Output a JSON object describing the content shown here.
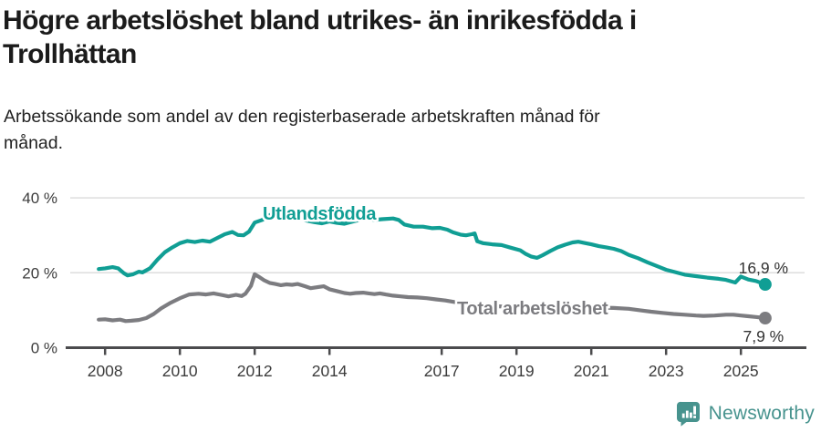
{
  "header": {
    "title": "Högre arbetslöshet bland utrikes- än inrikesfödda i\nTrollhättan",
    "subtitle": "Arbetssökande som andel av den registerbaserade arbetskraften månad för\nmånad."
  },
  "footer": {
    "brand": "Newsworthy",
    "brand_color": "#47938e"
  },
  "colors": {
    "title_text": "#1b1b1b",
    "subtitle_text": "#222222",
    "grid": "#dedede",
    "axis": "#4b4b4d",
    "tick_label": "#3c3c3c",
    "annotation_text": "#333333",
    "series_utlandsfodda": "#109e94",
    "series_total": "#7c7c80",
    "background": "#ffffff"
  },
  "chart_data": {
    "type": "line",
    "title": "Högre arbetslöshet bland utrikes- än inrikesfödda i Trollhättan",
    "subtitle": "Arbetssökande som andel av den registerbaserade arbetskraften månad för månad.",
    "x_unit": "decimal year (monthly observations)",
    "xlim": [
      2007.8,
      2025.95
    ],
    "ylim": [
      0,
      43
    ],
    "grid": "horizontal",
    "legend_position": "inline-labels",
    "x_ticks": [
      2008,
      2010,
      2012,
      2014,
      2017,
      2019,
      2021,
      2023,
      2025
    ],
    "y_ticks": [
      {
        "value": 0,
        "label": "0 %"
      },
      {
        "value": 20,
        "label": "20 %"
      },
      {
        "value": 40,
        "label": "40 %"
      }
    ],
    "series": [
      {
        "name": "Utlandsfödda",
        "color": "#109e94",
        "end_label": "16,9 %",
        "last_value": 16.9,
        "points": [
          [
            2007.83,
            21.0
          ],
          [
            2008.0,
            21.2
          ],
          [
            2008.2,
            21.5
          ],
          [
            2008.35,
            21.2
          ],
          [
            2008.5,
            19.9
          ],
          [
            2008.6,
            19.3
          ],
          [
            2008.75,
            19.6
          ],
          [
            2008.9,
            20.3
          ],
          [
            2009.0,
            20.1
          ],
          [
            2009.2,
            21.2
          ],
          [
            2009.4,
            23.5
          ],
          [
            2009.6,
            25.5
          ],
          [
            2009.8,
            26.8
          ],
          [
            2010.0,
            27.9
          ],
          [
            2010.2,
            28.5
          ],
          [
            2010.4,
            28.2
          ],
          [
            2010.6,
            28.6
          ],
          [
            2010.8,
            28.3
          ],
          [
            2011.0,
            29.3
          ],
          [
            2011.2,
            30.3
          ],
          [
            2011.4,
            30.9
          ],
          [
            2011.55,
            30.1
          ],
          [
            2011.7,
            30.0
          ],
          [
            2011.85,
            31.0
          ],
          [
            2012.0,
            33.4
          ],
          [
            2012.2,
            34.1
          ],
          [
            2012.4,
            35.4
          ],
          [
            2012.6,
            35.7
          ],
          [
            2012.8,
            35.9
          ],
          [
            2013.0,
            35.0
          ],
          [
            2013.2,
            34.4
          ],
          [
            2013.4,
            33.9
          ],
          [
            2013.6,
            33.5
          ],
          [
            2013.8,
            33.2
          ],
          [
            2014.0,
            33.7
          ],
          [
            2014.2,
            33.3
          ],
          [
            2014.4,
            33.1
          ],
          [
            2014.6,
            33.6
          ],
          [
            2014.8,
            34.1
          ],
          [
            2015.0,
            34.4
          ],
          [
            2015.2,
            34.1
          ],
          [
            2015.4,
            34.3
          ],
          [
            2015.7,
            34.5
          ],
          [
            2015.85,
            34.1
          ],
          [
            2016.0,
            32.9
          ],
          [
            2016.25,
            32.3
          ],
          [
            2016.5,
            32.3
          ],
          [
            2016.75,
            31.9
          ],
          [
            2016.95,
            32.0
          ],
          [
            2017.15,
            31.5
          ],
          [
            2017.3,
            30.8
          ],
          [
            2017.5,
            30.2
          ],
          [
            2017.65,
            30.0
          ],
          [
            2017.8,
            30.3
          ],
          [
            2017.88,
            30.5
          ],
          [
            2017.95,
            28.4
          ],
          [
            2018.1,
            27.9
          ],
          [
            2018.35,
            27.6
          ],
          [
            2018.6,
            27.4
          ],
          [
            2018.85,
            26.7
          ],
          [
            2019.1,
            26.0
          ],
          [
            2019.25,
            25.0
          ],
          [
            2019.4,
            24.3
          ],
          [
            2019.55,
            24.0
          ],
          [
            2019.7,
            24.7
          ],
          [
            2019.9,
            25.8
          ],
          [
            2020.1,
            26.8
          ],
          [
            2020.3,
            27.5
          ],
          [
            2020.5,
            28.1
          ],
          [
            2020.65,
            28.3
          ],
          [
            2020.8,
            28.0
          ],
          [
            2021.0,
            27.6
          ],
          [
            2021.2,
            27.1
          ],
          [
            2021.4,
            26.8
          ],
          [
            2021.6,
            26.4
          ],
          [
            2021.8,
            25.8
          ],
          [
            2022.0,
            24.8
          ],
          [
            2022.25,
            23.9
          ],
          [
            2022.5,
            22.8
          ],
          [
            2022.8,
            21.6
          ],
          [
            2023.0,
            20.8
          ],
          [
            2023.2,
            20.3
          ],
          [
            2023.5,
            19.5
          ],
          [
            2023.8,
            19.1
          ],
          [
            2024.1,
            18.7
          ],
          [
            2024.4,
            18.4
          ],
          [
            2024.6,
            18.1
          ],
          [
            2024.85,
            17.4
          ],
          [
            2025.0,
            19.0
          ],
          [
            2025.2,
            18.2
          ],
          [
            2025.4,
            17.8
          ],
          [
            2025.65,
            16.9
          ]
        ]
      },
      {
        "name": "Total arbetslöshet",
        "color": "#7c7c80",
        "end_label": "7,9 %",
        "last_value": 7.9,
        "points": [
          [
            2007.83,
            7.5
          ],
          [
            2008.0,
            7.6
          ],
          [
            2008.2,
            7.3
          ],
          [
            2008.4,
            7.5
          ],
          [
            2008.55,
            7.1
          ],
          [
            2008.7,
            7.2
          ],
          [
            2008.9,
            7.4
          ],
          [
            2009.1,
            7.9
          ],
          [
            2009.3,
            9.0
          ],
          [
            2009.5,
            10.5
          ],
          [
            2009.75,
            12.0
          ],
          [
            2010.0,
            13.2
          ],
          [
            2010.25,
            14.2
          ],
          [
            2010.5,
            14.4
          ],
          [
            2010.7,
            14.2
          ],
          [
            2010.9,
            14.5
          ],
          [
            2011.1,
            14.1
          ],
          [
            2011.3,
            13.7
          ],
          [
            2011.5,
            14.1
          ],
          [
            2011.65,
            13.8
          ],
          [
            2011.75,
            14.4
          ],
          [
            2011.9,
            16.5
          ],
          [
            2012.0,
            19.6
          ],
          [
            2012.1,
            19.0
          ],
          [
            2012.25,
            18.0
          ],
          [
            2012.4,
            17.3
          ],
          [
            2012.55,
            17.0
          ],
          [
            2012.7,
            16.7
          ],
          [
            2012.85,
            16.9
          ],
          [
            2013.0,
            16.8
          ],
          [
            2013.15,
            17.0
          ],
          [
            2013.35,
            16.4
          ],
          [
            2013.5,
            15.9
          ],
          [
            2013.7,
            16.2
          ],
          [
            2013.85,
            16.4
          ],
          [
            2014.0,
            15.6
          ],
          [
            2014.2,
            15.1
          ],
          [
            2014.4,
            14.6
          ],
          [
            2014.55,
            14.4
          ],
          [
            2014.7,
            14.6
          ],
          [
            2014.9,
            14.7
          ],
          [
            2015.05,
            14.5
          ],
          [
            2015.2,
            14.3
          ],
          [
            2015.35,
            14.5
          ],
          [
            2015.5,
            14.2
          ],
          [
            2015.7,
            13.9
          ],
          [
            2015.9,
            13.7
          ],
          [
            2016.1,
            13.5
          ],
          [
            2016.35,
            13.4
          ],
          [
            2016.6,
            13.2
          ],
          [
            2016.85,
            12.9
          ],
          [
            2017.1,
            12.6
          ],
          [
            2017.35,
            12.2
          ],
          [
            2017.6,
            11.8
          ],
          [
            2018.0,
            11.4
          ],
          [
            2018.4,
            11.1
          ],
          [
            2018.8,
            10.9
          ],
          [
            2019.2,
            10.8
          ],
          [
            2019.6,
            10.7
          ],
          [
            2020.0,
            11.0
          ],
          [
            2020.4,
            11.2
          ],
          [
            2020.8,
            10.9
          ],
          [
            2021.2,
            10.7
          ],
          [
            2021.6,
            10.6
          ],
          [
            2022.0,
            10.4
          ],
          [
            2022.3,
            10.0
          ],
          [
            2022.6,
            9.6
          ],
          [
            2022.9,
            9.3
          ],
          [
            2023.2,
            9.0
          ],
          [
            2023.5,
            8.8
          ],
          [
            2023.8,
            8.6
          ],
          [
            2024.0,
            8.5
          ],
          [
            2024.3,
            8.6
          ],
          [
            2024.6,
            8.8
          ],
          [
            2024.8,
            8.8
          ],
          [
            2025.0,
            8.6
          ],
          [
            2025.2,
            8.4
          ],
          [
            2025.4,
            8.2
          ],
          [
            2025.65,
            7.9
          ]
        ]
      }
    ]
  }
}
